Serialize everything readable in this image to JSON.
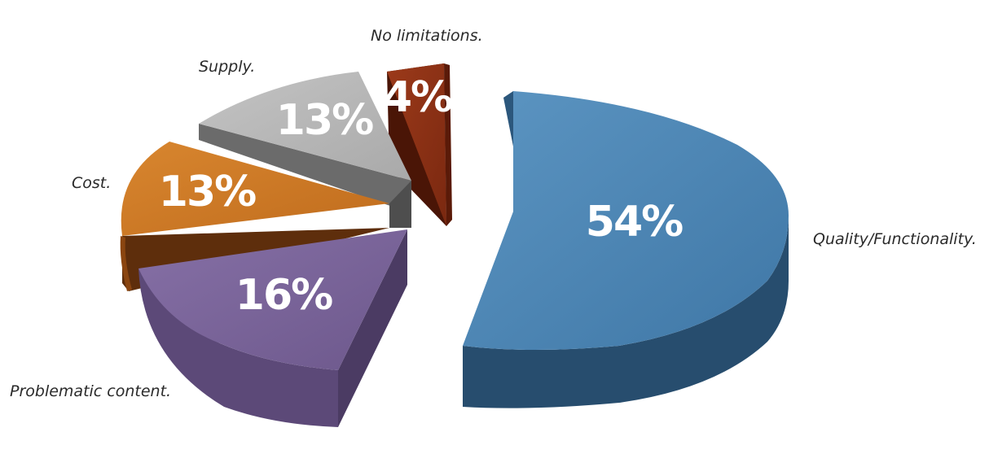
{
  "chart_data": {
    "type": "pie",
    "style": "3d-exploded",
    "categories": [
      "Quality/Functionality.",
      "Problematic content.",
      "Cost.",
      "Supply.",
      "No limitations."
    ],
    "values": [
      54,
      16,
      13,
      13,
      4
    ],
    "data_labels": [
      "54%",
      "16%",
      "13%",
      "13%",
      "4%"
    ],
    "colors": [
      "#4f87b4",
      "#7b6499",
      "#cf7a27",
      "#b5b5b5",
      "#8a2f14"
    ],
    "title": "",
    "legend": "none"
  }
}
